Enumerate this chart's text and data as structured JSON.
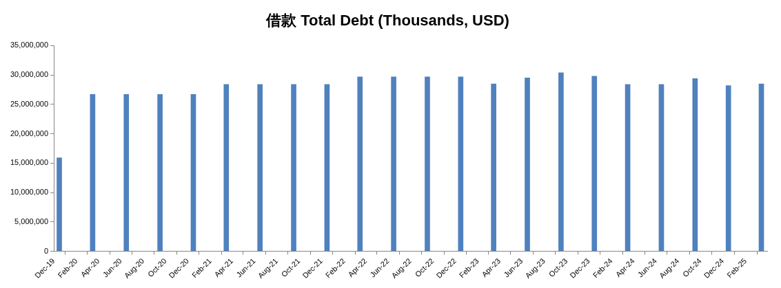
{
  "chart_data": {
    "type": "bar",
    "title": "借款 Total Debt (Thousands, USD)",
    "x": [
      "2019-12-16",
      "2020-03-16",
      "2020-06-16",
      "2020-09-16",
      "2020-12-16",
      "2021-03-16",
      "2021-06-16",
      "2021-09-16",
      "2021-12-16",
      "2022-03-16",
      "2022-06-16",
      "2022-09-16",
      "2022-12-16",
      "2023-03-16",
      "2023-06-16",
      "2023-09-16",
      "2023-12-16",
      "2024-03-16",
      "2024-06-16",
      "2024-09-16",
      "2024-12-16",
      "2025-03-16"
    ],
    "values": [
      15900000,
      26700000,
      26700000,
      26700000,
      26700000,
      28400000,
      28400000,
      28400000,
      28400000,
      29700000,
      29700000,
      29700000,
      29700000,
      28500000,
      29500000,
      30400000,
      29800000,
      28400000,
      28400000,
      29400000,
      28200000,
      28500000
    ],
    "color": "#4f81bd",
    "xlim": [
      "2019-12",
      "2025-04"
    ],
    "xticks": [
      {
        "value": "2019-12",
        "label": "Dec-19"
      },
      {
        "value": "2020-02",
        "label": "Feb-20"
      },
      {
        "value": "2020-04",
        "label": "Apr-20"
      },
      {
        "value": "2020-06",
        "label": "Jun-20"
      },
      {
        "value": "2020-08",
        "label": "Aug-20"
      },
      {
        "value": "2020-10",
        "label": "Oct-20"
      },
      {
        "value": "2020-12",
        "label": "Dec-20"
      },
      {
        "value": "2021-02",
        "label": "Feb-21"
      },
      {
        "value": "2021-04",
        "label": "Apr-21"
      },
      {
        "value": "2021-06",
        "label": "Jun-21"
      },
      {
        "value": "2021-08",
        "label": "Aug-21"
      },
      {
        "value": "2021-10",
        "label": "Oct-21"
      },
      {
        "value": "2021-12",
        "label": "Dec-21"
      },
      {
        "value": "2022-02",
        "label": "Feb-22"
      },
      {
        "value": "2022-04",
        "label": "Apr-22"
      },
      {
        "value": "2022-06",
        "label": "Jun-22"
      },
      {
        "value": "2022-08",
        "label": "Aug-22"
      },
      {
        "value": "2022-10",
        "label": "Oct-22"
      },
      {
        "value": "2022-12",
        "label": "Dec-22"
      },
      {
        "value": "2023-02",
        "label": "Feb-23"
      },
      {
        "value": "2023-04",
        "label": "Apr-23"
      },
      {
        "value": "2023-06",
        "label": "Jun-23"
      },
      {
        "value": "2023-08",
        "label": "Aug-23"
      },
      {
        "value": "2023-10",
        "label": "Oct-23"
      },
      {
        "value": "2023-12",
        "label": "Dec-23"
      },
      {
        "value": "2024-02",
        "label": "Feb-24"
      },
      {
        "value": "2024-04",
        "label": "Apr-24"
      },
      {
        "value": "2024-06",
        "label": "Jun-24"
      },
      {
        "value": "2024-08",
        "label": "Aug-24"
      },
      {
        "value": "2024-10",
        "label": "Oct-24"
      },
      {
        "value": "2024-12",
        "label": "Dec-24"
      },
      {
        "value": "2025-02",
        "label": "Feb-25"
      }
    ],
    "ylim": [
      0,
      35000000
    ],
    "yticks": [
      0,
      {
        "value": 5000000,
        "label": "5,000,000"
      },
      {
        "value": 10000000,
        "label": "10,000,000"
      },
      {
        "value": 15000000,
        "label": "15,000,000"
      },
      {
        "value": 20000000,
        "label": "20,000,000"
      },
      {
        "value": 25000000,
        "label": "25,000,000"
      },
      {
        "value": 30000000,
        "label": "30,000,000"
      },
      {
        "value": 35000000,
        "label": "35,000,000"
      }
    ],
    "grid": false,
    "legend": false
  }
}
